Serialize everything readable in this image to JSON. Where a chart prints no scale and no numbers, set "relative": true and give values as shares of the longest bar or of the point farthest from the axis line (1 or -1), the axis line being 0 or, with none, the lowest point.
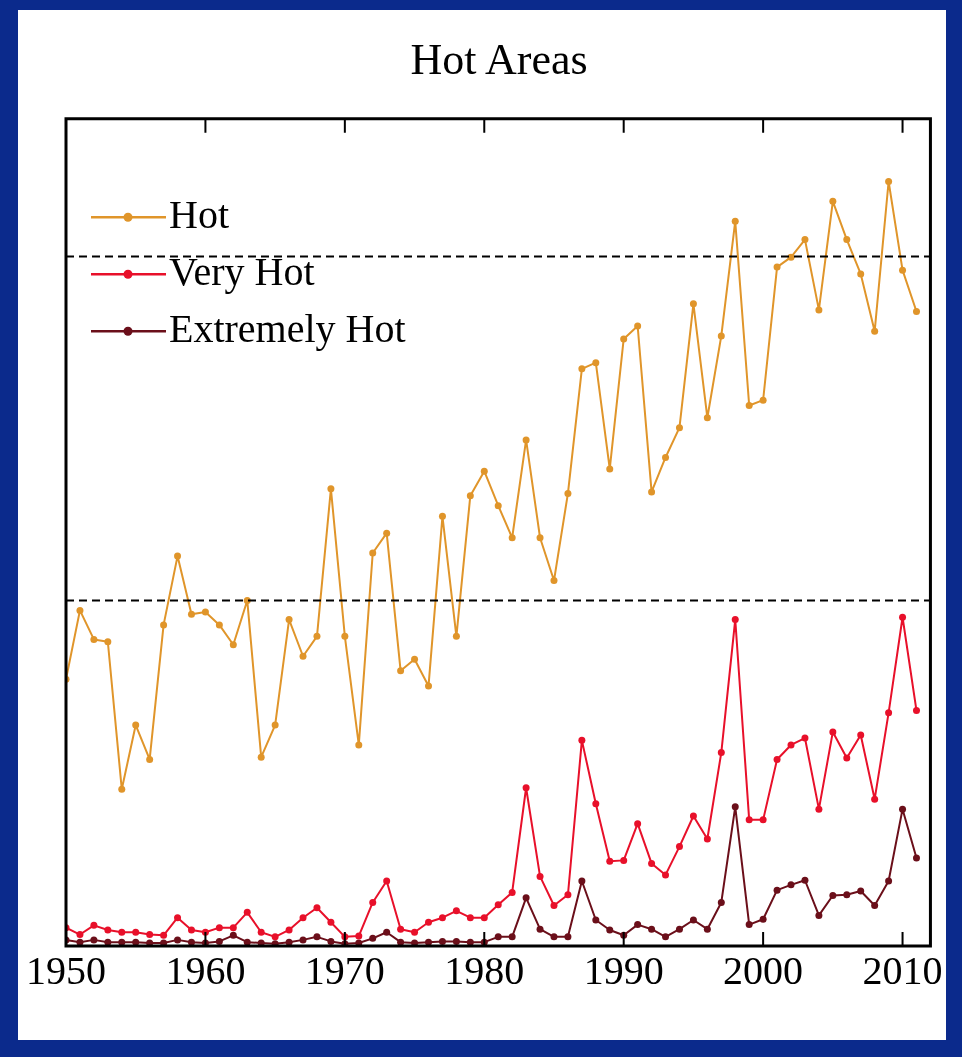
{
  "chart_data": {
    "type": "line",
    "title": "Hot Areas",
    "relative": true,
    "x": [
      1950,
      1951,
      1952,
      1953,
      1954,
      1955,
      1956,
      1957,
      1958,
      1959,
      1960,
      1961,
      1962,
      1963,
      1964,
      1965,
      1966,
      1967,
      1968,
      1969,
      1970,
      1971,
      1972,
      1973,
      1974,
      1975,
      1976,
      1977,
      1978,
      1979,
      1980,
      1981,
      1982,
      1983,
      1984,
      1985,
      1986,
      1987,
      1988,
      1989,
      1990,
      1991,
      1992,
      1993,
      1994,
      1995,
      1996,
      1997,
      1998,
      1999,
      2000,
      2001,
      2002,
      2003,
      2004,
      2005,
      2006,
      2007,
      2008,
      2009,
      2010,
      2011
    ],
    "xlim": [
      1950,
      2012
    ],
    "xticks": [
      1950,
      1960,
      1970,
      1980,
      1990,
      2000,
      2010
    ],
    "grid": false,
    "legend": "top left",
    "marker": "circle",
    "line_style": "solid",
    "series": [
      {
        "name": "Hot",
        "color": "#e0952a",
        "values": [
          0.349,
          0.439,
          0.401,
          0.398,
          0.205,
          0.289,
          0.244,
          0.42,
          0.51,
          0.434,
          0.437,
          0.42,
          0.394,
          0.452,
          0.247,
          0.289,
          0.427,
          0.379,
          0.405,
          0.598,
          0.405,
          0.263,
          0.514,
          0.54,
          0.36,
          0.375,
          0.34,
          0.562,
          0.405,
          0.589,
          0.621,
          0.576,
          0.534,
          0.662,
          0.534,
          0.478,
          0.592,
          0.755,
          0.763,
          0.624,
          0.794,
          0.811,
          0.594,
          0.639,
          0.678,
          0.84,
          0.691,
          0.798,
          0.948,
          0.707,
          0.714,
          0.888,
          0.901,
          0.924,
          0.832,
          0.974,
          0.924,
          0.879,
          0.804,
          1,
          0.884,
          0.83
        ]
      },
      {
        "name": "Very Hot",
        "color": "#e8102a",
        "values": [
          0.024,
          0.015,
          0.027,
          0.021,
          0.018,
          0.018,
          0.015,
          0.014,
          0.037,
          0.021,
          0.018,
          0.024,
          0.024,
          0.044,
          0.018,
          0.012,
          0.021,
          0.037,
          0.05,
          0.031,
          0.012,
          0.013,
          0.057,
          0.085,
          0.022,
          0.018,
          0.031,
          0.037,
          0.046,
          0.037,
          0.037,
          0.054,
          0.07,
          0.207,
          0.091,
          0.053,
          0.067,
          0.269,
          0.186,
          0.111,
          0.112,
          0.16,
          0.108,
          0.093,
          0.13,
          0.17,
          0.14,
          0.253,
          0.427,
          0.165,
          0.165,
          0.244,
          0.263,
          0.272,
          0.179,
          0.28,
          0.246,
          0.276,
          0.192,
          0.305,
          0.43,
          0.308
        ]
      },
      {
        "name": "Extremely Hot",
        "color": "#6b0f1a",
        "values": [
          0.008,
          0.005,
          0.008,
          0.005,
          0.005,
          0.005,
          0.004,
          0.004,
          0.008,
          0.005,
          0.004,
          0.006,
          0.014,
          0.005,
          0.004,
          0.003,
          0.005,
          0.008,
          0.012,
          0.006,
          0.003,
          0.004,
          0.01,
          0.018,
          0.005,
          0.004,
          0.005,
          0.006,
          0.006,
          0.005,
          0.005,
          0.012,
          0.012,
          0.063,
          0.022,
          0.012,
          0.012,
          0.085,
          0.034,
          0.021,
          0.014,
          0.028,
          0.022,
          0.012,
          0.022,
          0.034,
          0.022,
          0.057,
          0.182,
          0.028,
          0.035,
          0.073,
          0.08,
          0.086,
          0.04,
          0.066,
          0.067,
          0.072,
          0.053,
          0.085,
          0.179,
          0.115
        ]
      }
    ],
    "ref_lines": [
      {
        "axis": "y",
        "value": 0.902,
        "line_style": "dashed",
        "color": "#000000"
      },
      {
        "axis": "y",
        "value": 0.452,
        "line_style": "dashed",
        "color": "#000000"
      }
    ]
  }
}
